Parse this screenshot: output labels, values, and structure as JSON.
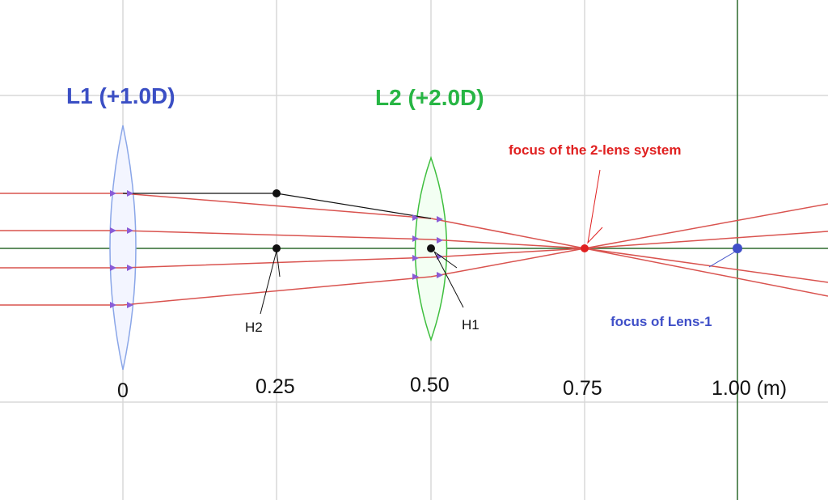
{
  "lens1": {
    "label": "L1 (+1.0D)",
    "color": "#3b4fc4",
    "fill": "#f3f5ff",
    "stroke": "#8aa6e8"
  },
  "lens2": {
    "label": "L2 (+2.0D)",
    "color": "#27b544",
    "fill": "#f3fff3",
    "stroke": "#3fbf3f"
  },
  "ticks": [
    "0",
    "0.25",
    "0.50",
    "0.75",
    "1.00 (m)"
  ],
  "principal_planes": {
    "h2": "H2",
    "h1": "H1"
  },
  "annotations": {
    "system_focus": "focus of the 2-lens system",
    "lens1_focus": "focus of Lens-1"
  },
  "colors": {
    "ray": "#d9534f",
    "axis": "#2d6a2d",
    "grid": "#d8d8d8",
    "system_focus": "#e02020",
    "lens1_focus": "#3f4fc8",
    "arrow": "#8a5cd6"
  }
}
